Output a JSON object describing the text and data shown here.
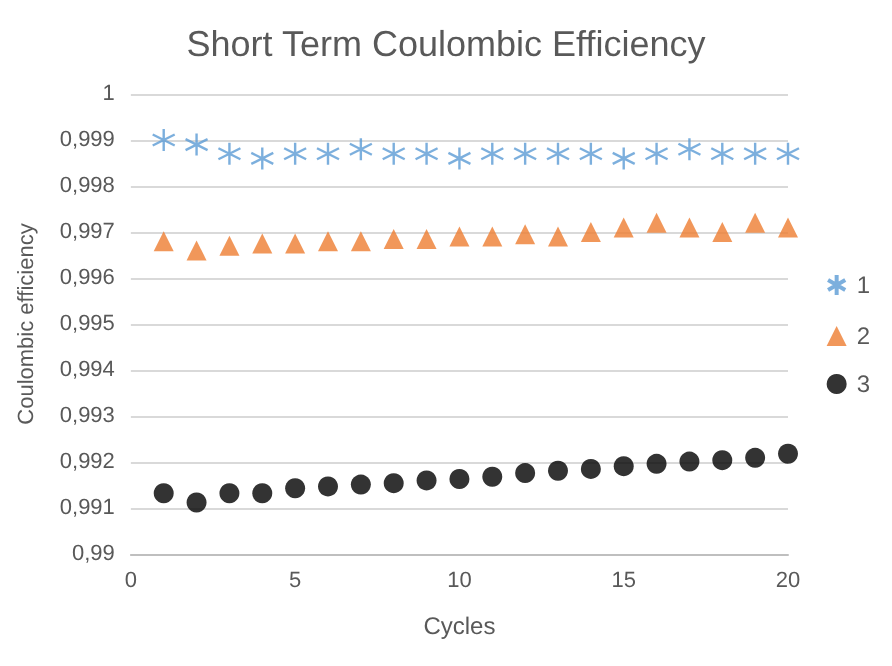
{
  "chart_data": {
    "type": "scatter",
    "title": "Short Term Coulombic Efficiency",
    "xlabel": "Cycles",
    "ylabel": "Coulombic efficiency",
    "x": [
      1,
      2,
      3,
      4,
      5,
      6,
      7,
      8,
      9,
      10,
      11,
      12,
      13,
      14,
      15,
      16,
      17,
      18,
      19,
      20
    ],
    "series": [
      {
        "name": "1",
        "color": "#5b9bd5",
        "marker": "cross",
        "values": [
          0.999,
          0.9989,
          0.9987,
          0.9986,
          0.9987,
          0.9987,
          0.9988,
          0.9987,
          0.9987,
          0.9986,
          0.9987,
          0.9987,
          0.9987,
          0.9987,
          0.9986,
          0.9987,
          0.9988,
          0.9987,
          0.9987,
          0.9987
        ]
      },
      {
        "name": "2",
        "color": "#ed7d31",
        "marker": "triangle",
        "values": [
          0.9968,
          0.9966,
          0.9967,
          0.99675,
          0.99675,
          0.9968,
          0.9968,
          0.99685,
          0.99685,
          0.9969,
          0.9969,
          0.99695,
          0.9969,
          0.997,
          0.9971,
          0.9972,
          0.9971,
          0.997,
          0.9972,
          0.9971
        ]
      },
      {
        "name": "3",
        "color": "#000000",
        "marker": "circle",
        "values": [
          0.99132,
          0.99112,
          0.99132,
          0.99132,
          0.99143,
          0.99147,
          0.99151,
          0.99154,
          0.9916,
          0.99163,
          0.99168,
          0.99176,
          0.99181,
          0.99185,
          0.99191,
          0.99196,
          0.99201,
          0.99204,
          0.99209,
          0.99218
        ]
      }
    ],
    "xlim": [
      0,
      20
    ],
    "xticks": [
      0,
      5,
      10,
      15,
      20
    ],
    "ylim": [
      0.99,
      1
    ],
    "yticks": [
      {
        "value": 0.99,
        "label": "0,99"
      },
      {
        "value": 0.991,
        "label": "0,991"
      },
      {
        "value": 0.992,
        "label": "0,992"
      },
      {
        "value": 0.993,
        "label": "0,993"
      },
      {
        "value": 0.994,
        "label": "0,994"
      },
      {
        "value": 0.995,
        "label": "0,995"
      },
      {
        "value": 0.996,
        "label": "0,996"
      },
      {
        "value": 0.997,
        "label": "0,997"
      },
      {
        "value": 0.998,
        "label": "0,998"
      },
      {
        "value": 0.999,
        "label": "0,999"
      },
      {
        "value": 1,
        "label": "1"
      }
    ],
    "grid": "y",
    "legend": "right"
  }
}
